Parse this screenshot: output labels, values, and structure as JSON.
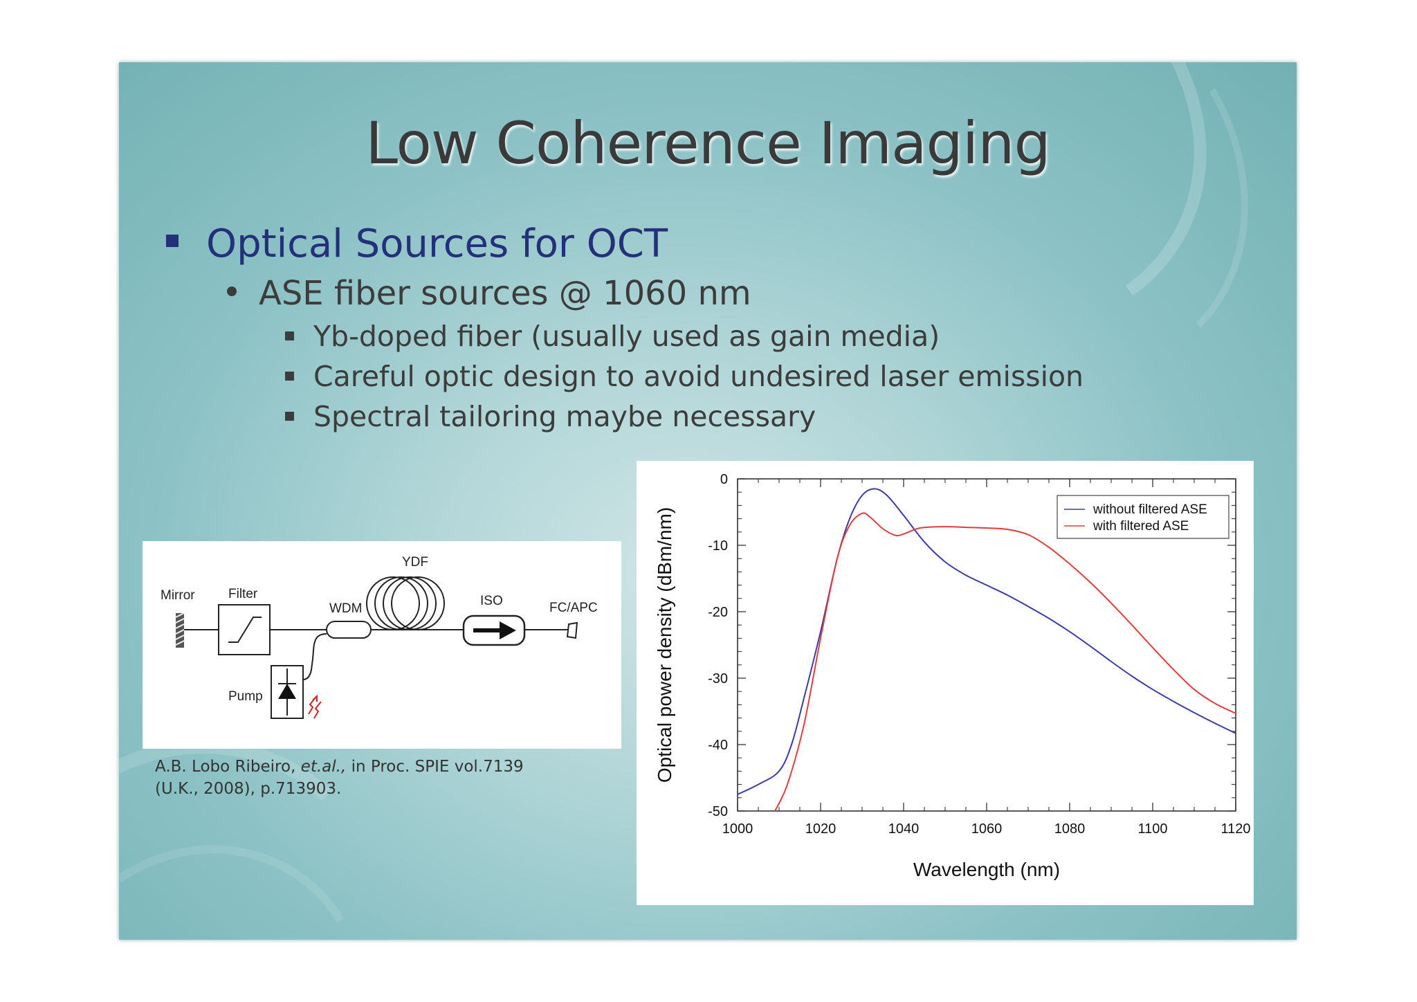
{
  "slide": {
    "title": "Low Coherence Imaging",
    "bullet_l1": "Optical Sources for OCT",
    "bullet_l2": "ASE fiber sources @ 1060 nm",
    "bullet_l3": [
      "Yb-doped fiber (usually used as gain media)",
      "Careful optic design to avoid undesired laser emission",
      "Spectral tailoring maybe necessary"
    ]
  },
  "diagram": {
    "labels": {
      "mirror": "Mirror",
      "filter": "Filter",
      "wdm": "WDM",
      "ydf": "YDF",
      "iso": "ISO",
      "fcapc": "FC/APC",
      "pump": "Pump"
    },
    "colors": {
      "pump_arrow": "#cc2222"
    }
  },
  "citation": {
    "line1_pre": "A.B. Lobo Ribeiro, ",
    "line1_italic": "et.al.,",
    "line1_post": " in Proc. SPIE vol.7139",
    "line2": "(U.K., 2008), p.713903."
  },
  "chart_data": {
    "type": "line",
    "xlabel": "Wavelength (nm)",
    "ylabel": "Optical power density (dBm/nm)",
    "xlim": [
      1000,
      1120
    ],
    "ylim": [
      -50,
      0
    ],
    "xticks": [
      1000,
      1020,
      1040,
      1060,
      1080,
      1100,
      1120
    ],
    "yticks": [
      0,
      -10,
      -20,
      -30,
      -40,
      -50
    ],
    "legend_position": "top-right",
    "series": [
      {
        "name": "without filtered ASE",
        "color": "#3b3ba8",
        "x": [
          1000,
          1005,
          1010,
          1013,
          1016,
          1020,
          1024,
          1027,
          1030,
          1033,
          1036,
          1040,
          1045,
          1050,
          1055,
          1060,
          1065,
          1070,
          1075,
          1080,
          1085,
          1090,
          1095,
          1100,
          1105,
          1110,
          1115,
          1120
        ],
        "y": [
          -47.5,
          -46,
          -44,
          -40,
          -33,
          -23,
          -12,
          -6,
          -2.5,
          -1.5,
          -2.5,
          -5.5,
          -9.5,
          -12.5,
          -14.5,
          -16,
          -17.5,
          -19.2,
          -21,
          -23,
          -25.2,
          -27.5,
          -29.7,
          -31.7,
          -33.5,
          -35.2,
          -36.8,
          -38.3
        ]
      },
      {
        "name": "with filtered ASE",
        "color": "#e03c3c",
        "x": [
          1009,
          1012,
          1016,
          1020,
          1024,
          1027,
          1030,
          1032,
          1035,
          1038,
          1040,
          1044,
          1050,
          1055,
          1060,
          1065,
          1070,
          1075,
          1080,
          1085,
          1090,
          1095,
          1100,
          1105,
          1110,
          1115,
          1120
        ],
        "y": [
          -50,
          -46,
          -37,
          -24,
          -12,
          -7,
          -5.2,
          -5.8,
          -7.5,
          -8.5,
          -8.3,
          -7.4,
          -7.2,
          -7.3,
          -7.4,
          -7.6,
          -8.4,
          -10.3,
          -12.8,
          -15.6,
          -18.7,
          -22,
          -25.4,
          -28.7,
          -31.7,
          -33.8,
          -35.3
        ]
      }
    ]
  }
}
